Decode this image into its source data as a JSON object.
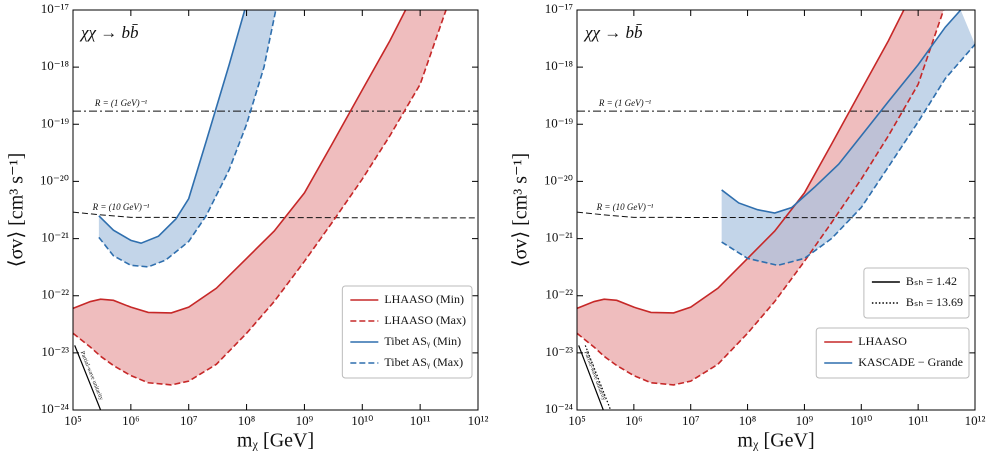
{
  "chart_data": [
    {
      "type": "line",
      "xscale": "log",
      "yscale": "log",
      "annotation": "χχ → bb̄",
      "xlabel": "mᵪ [GeV]",
      "ylabel": "⟨σv⟩ [cm³ s⁻¹]",
      "xlim": [
        100000.0,
        1000000000000.0
      ],
      "ylim": [
        1e-24,
        1e-17
      ],
      "xticks": [
        {
          "value": 100000.0,
          "label": "10⁵"
        },
        {
          "value": 1000000.0,
          "label": "10⁶"
        },
        {
          "value": 10000000.0,
          "label": "10⁷"
        },
        {
          "value": 100000000.0,
          "label": "10⁸"
        },
        {
          "value": 1000000000.0,
          "label": "10⁹"
        },
        {
          "value": 10000000000.0,
          "label": "10¹⁰"
        },
        {
          "value": 100000000000.0,
          "label": "10¹¹"
        },
        {
          "value": 1000000000000.0,
          "label": "10¹²"
        }
      ],
      "yticks": [
        {
          "value": 1e-24,
          "label": "10⁻²⁴"
        },
        {
          "value": 1e-23,
          "label": "10⁻²³"
        },
        {
          "value": 1e-22,
          "label": "10⁻²²"
        },
        {
          "value": 1e-21,
          "label": "10⁻²¹"
        },
        {
          "value": 1e-20,
          "label": "10⁻²⁰"
        },
        {
          "value": 1e-19,
          "label": "10⁻¹⁹"
        },
        {
          "value": 1e-18,
          "label": "10⁻¹⁸"
        },
        {
          "value": 1e-17,
          "label": "10⁻¹⁷"
        }
      ],
      "legend": "lower right",
      "series": [
        {
          "color": "#c62828",
          "band_color": "#e8a1a3",
          "min": {
            "name": "LHAASO (Min)",
            "x": [
              100000.0,
              200000.0,
              300000.0,
              500000.0,
              1000000.0,
              2000000.0,
              5000000.0,
              10000000.0,
              30000000.0,
              100000000.0,
              300000000.0,
              1000000000.0,
              3000000000.0,
              10000000000.0,
              30000000000.0,
              56000000000.0
            ],
            "values": [
              6e-23,
              7.9e-23,
              8.7e-23,
              8.3e-23,
              6.3e-23,
              5.1e-23,
              5e-23,
              6.3e-23,
              1.35e-22,
              4.5e-22,
              1.35e-21,
              6.3e-21,
              4.5e-20,
              4e-19,
              2.9e-18,
              1e-17
            ]
          },
          "max": {
            "name": "LHAASO (Max)",
            "x": [
              100000.0,
              200000.0,
              300000.0,
              500000.0,
              1000000.0,
              2000000.0,
              5000000.0,
              10000000.0,
              30000000.0,
              100000000.0,
              300000000.0,
              1000000000.0,
              3000000000.0,
              10000000000.0,
              30000000000.0,
              100000000000.0,
              280000000000.0
            ],
            "values": [
              2.2e-23,
              1.26e-23,
              8.7e-24,
              6e-24,
              4e-24,
              3e-24,
              2.75e-24,
              3.2e-24,
              6.3e-24,
              2.2e-23,
              7.9e-23,
              4e-22,
              1.9e-21,
              1.1e-20,
              6.3e-20,
              5e-19,
              1e-17
            ]
          }
        },
        {
          "color": "#2f6fae",
          "band_color": "#a9c3df",
          "min": {
            "name": "Tibet ASᵧ (Min)",
            "x": [
              280000.0,
              500000.0,
              1000000.0,
              1500000.0,
              3000000.0,
              6000000.0,
              10000000.0,
              20000000.0,
              50000000.0,
              93000000.0
            ],
            "values": [
              2.5e-21,
              1.4e-21,
              9.3e-22,
              8.3e-22,
              1.1e-21,
              2.2e-21,
              5e-21,
              5e-20,
              1.1e-18,
              1e-17
            ]
          },
          "max": {
            "name": "Tibet ASᵧ (Max)",
            "x": [
              280000.0,
              500000.0,
              1000000.0,
              2000000.0,
              4000000.0,
              10000000.0,
              20000000.0,
              50000000.0,
              100000000.0,
              200000000.0,
              320000000.0
            ],
            "values": [
              1.05e-21,
              5e-22,
              3.4e-22,
              3.2e-22,
              4.2e-22,
              8.9e-22,
              2.5e-21,
              1.6e-20,
              1e-19,
              1e-18,
              1e-17
            ]
          }
        }
      ],
      "reference_lines": [
        {
          "label": "R = (1 GeV)⁻¹",
          "style": "dashdot",
          "x": [
            100000.0,
            1000000000000.0
          ],
          "values": [
            1.7e-19,
            1.7e-19
          ]
        },
        {
          "label": "R = (10 GeV)⁻¹",
          "style": "dashed",
          "x": [
            100000.0,
            300000.0,
            1000000.0,
            1000000000000.0
          ],
          "values": [
            2.9e-21,
            2.6e-21,
            2.35e-21,
            2.3e-21
          ]
        }
      ],
      "unitarity": {
        "label": "Partial-wave unitarity",
        "lines": [
          {
            "style": "solid",
            "x": [
              107000.0,
              300000.0
            ],
            "values": [
              1.35e-23,
              1e-24
            ]
          }
        ]
      }
    },
    {
      "type": "line",
      "xscale": "log",
      "yscale": "log",
      "annotation": "χχ → bb̄",
      "xlabel": "mᵪ [GeV]",
      "ylabel": "⟨σv⟩ [cm³ s⁻¹]",
      "xlim": [
        100000.0,
        1000000000000.0
      ],
      "ylim": [
        1e-24,
        1e-17
      ],
      "xticks": [
        {
          "value": 100000.0,
          "label": "10⁵"
        },
        {
          "value": 1000000.0,
          "label": "10⁶"
        },
        {
          "value": 10000000.0,
          "label": "10⁷"
        },
        {
          "value": 100000000.0,
          "label": "10⁸"
        },
        {
          "value": 1000000000.0,
          "label": "10⁹"
        },
        {
          "value": 10000000000.0,
          "label": "10¹⁰"
        },
        {
          "value": 100000000000.0,
          "label": "10¹¹"
        },
        {
          "value": 1000000000000.0,
          "label": "10¹²"
        }
      ],
      "yticks": [
        {
          "value": 1e-24,
          "label": "10⁻²⁴"
        },
        {
          "value": 1e-23,
          "label": "10⁻²³"
        },
        {
          "value": 1e-22,
          "label": "10⁻²²"
        },
        {
          "value": 1e-21,
          "label": "10⁻²¹"
        },
        {
          "value": 1e-20,
          "label": "10⁻²⁰"
        },
        {
          "value": 1e-19,
          "label": "10⁻¹⁹"
        },
        {
          "value": 1e-18,
          "label": "10⁻¹⁸"
        },
        {
          "value": 1e-17,
          "label": "10⁻¹⁷"
        }
      ],
      "legend": "lower right",
      "series": [
        {
          "name": "LHAASO",
          "color": "#c62828",
          "band_color": "#e8a1a3",
          "min": {
            "x": [
              100000.0,
              200000.0,
              300000.0,
              500000.0,
              1000000.0,
              2000000.0,
              5000000.0,
              10000000.0,
              30000000.0,
              100000000.0,
              300000000.0,
              1000000000.0,
              3000000000.0,
              10000000000.0,
              30000000000.0,
              56000000000.0
            ],
            "values": [
              6e-23,
              7.9e-23,
              8.7e-23,
              8.3e-23,
              6.3e-23,
              5.1e-23,
              5e-23,
              6.3e-23,
              1.35e-22,
              4.5e-22,
              1.35e-21,
              6.3e-21,
              4.5e-20,
              4e-19,
              2.9e-18,
              1e-17
            ]
          },
          "max": {
            "x": [
              100000.0,
              200000.0,
              300000.0,
              500000.0,
              1000000.0,
              2000000.0,
              5000000.0,
              10000000.0,
              30000000.0,
              100000000.0,
              300000000.0,
              1000000000.0,
              3000000000.0,
              10000000000.0,
              30000000000.0,
              100000000000.0,
              280000000000.0
            ],
            "values": [
              2.2e-23,
              1.26e-23,
              8.7e-24,
              6e-24,
              4e-24,
              3e-24,
              2.75e-24,
              3.2e-24,
              6.3e-24,
              2.2e-23,
              7.9e-23,
              4e-22,
              1.9e-21,
              1.1e-20,
              6.3e-20,
              5e-19,
              1e-17
            ]
          }
        },
        {
          "name": "KASCADE − Grande",
          "color": "#2f6fae",
          "band_color": "#a9c3df",
          "min": {
            "x": [
              35000000.0,
              70000000.0,
              150000000.0,
              300000000.0,
              600000000.0,
              1500000000.0,
              4000000000.0,
              10000000000.0,
              30000000000.0,
              100000000000.0,
              300000000000.0,
              560000000000.0
            ],
            "values": [
              7.1e-21,
              4.2e-21,
              3.2e-21,
              2.8e-21,
              3.5e-21,
              7.9e-21,
              2e-20,
              6.3e-20,
              2.5e-19,
              1.1e-18,
              5e-18,
              1e-17
            ]
          },
          "max": {
            "x": [
              35000000.0,
              100000000.0,
              340000000.0,
              1000000000.0,
              3000000000.0,
              10000000000.0,
              30000000000.0,
              100000000000.0,
              300000000000.0,
              1000000000000.0
            ],
            "values": [
              8.7e-22,
              4.5e-22,
              3.4e-22,
              4.5e-22,
              1e-21,
              3.5e-21,
              1.8e-20,
              1.1e-19,
              6.3e-19,
              2.5e-18
            ]
          }
        }
      ],
      "reference_lines": [
        {
          "label": "R = (1 GeV)⁻¹",
          "style": "dashdot",
          "x": [
            100000.0,
            1000000000000.0
          ],
          "values": [
            1.7e-19,
            1.7e-19
          ]
        },
        {
          "label": "R = (10 GeV)⁻¹",
          "style": "dashed",
          "x": [
            100000.0,
            300000.0,
            1000000.0,
            1000000000000.0
          ],
          "values": [
            2.9e-21,
            2.6e-21,
            2.35e-21,
            2.3e-21
          ]
        }
      ],
      "unitarity": {
        "label": "Partial-wave unitarity",
        "lines": [
          {
            "name": "Bₛₕ = 1.42",
            "style": "solid",
            "x": [
              107000.0,
              290000.0
            ],
            "values": [
              1.35e-23,
              1e-24
            ]
          },
          {
            "name": "Bₛₕ = 13.69",
            "style": "dotted",
            "x": [
              140000.0,
              390000.0
            ],
            "values": [
              1.35e-23,
              1e-24
            ]
          }
        ]
      }
    }
  ]
}
